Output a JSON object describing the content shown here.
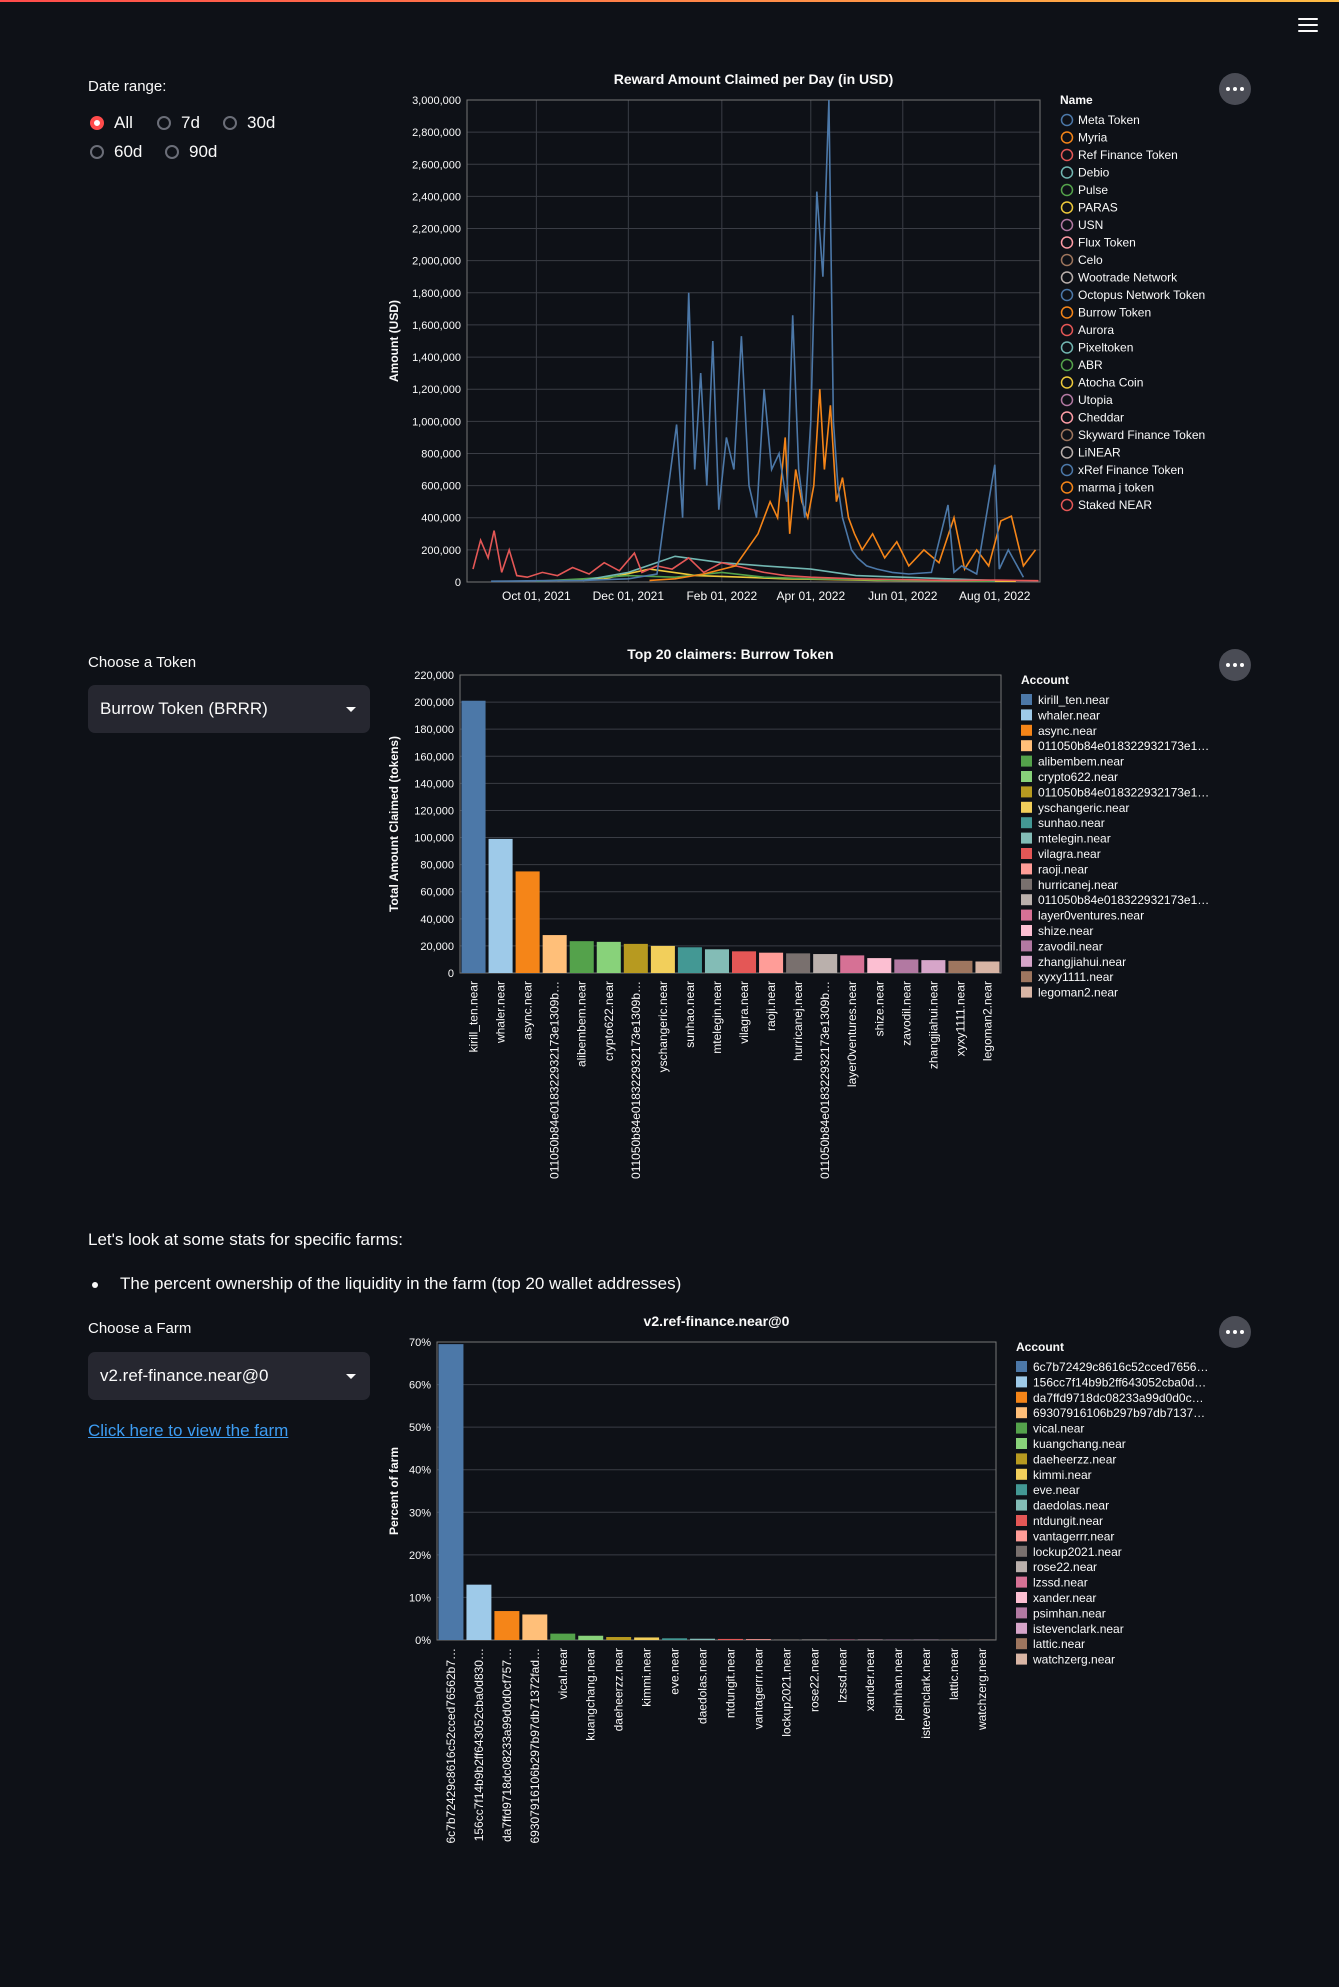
{
  "ui": {
    "date_range_label": "Date range:",
    "date_options": [
      "All",
      "7d",
      "30d",
      "60d",
      "90d"
    ],
    "date_selected": "All",
    "token_label": "Choose a Token",
    "token_value": "Burrow Token (BRRR)",
    "farm_intro": "Let's look at some stats for specific farms:",
    "farm_bullet": "The percent ownership of the liquidity in the farm (top 20 wallet addresses)",
    "farm_label": "Choose a Farm",
    "farm_value": "v2.ref-finance.near@0",
    "farm_link": "Click here to view the farm"
  },
  "chart_data": [
    {
      "type": "line",
      "title": "Reward Amount Claimed per Day (in USD)",
      "ylabel": "Amount (USD)",
      "ylim": [
        0,
        3000000
      ],
      "xlim": [
        "2021-08-16",
        "2022-08-31"
      ],
      "x_ticks": [
        "Oct 01, 2021",
        "Dec 01, 2021",
        "Feb 01, 2022",
        "Apr 01, 2022",
        "Jun 01, 2022",
        "Aug 01, 2022"
      ],
      "y_ticks": [
        "0",
        "200,000",
        "400,000",
        "600,000",
        "800,000",
        "1,000,000",
        "1,200,000",
        "1,400,000",
        "1,600,000",
        "1,800,000",
        "2,000,000",
        "2,200,000",
        "2,400,000",
        "2,600,000",
        "2,800,000",
        "3,000,000"
      ],
      "legend_title": "Name",
      "legend": "right",
      "grid": true,
      "legend_entries": [
        {
          "name": "Meta Token",
          "color": "#4c78a8"
        },
        {
          "name": "Myria",
          "color": "#f58518"
        },
        {
          "name": "Ref Finance Token",
          "color": "#e45756"
        },
        {
          "name": "Debio",
          "color": "#72b7b2"
        },
        {
          "name": "Pulse",
          "color": "#54a24b"
        },
        {
          "name": "PARAS",
          "color": "#eeca3b"
        },
        {
          "name": "USN",
          "color": "#b279a2"
        },
        {
          "name": "Flux Token",
          "color": "#ff9da6"
        },
        {
          "name": "Celo",
          "color": "#9d755d"
        },
        {
          "name": "Wootrade Network",
          "color": "#bab0ac"
        },
        {
          "name": "Octopus Network Token",
          "color": "#4c78a8"
        },
        {
          "name": "Burrow Token",
          "color": "#f58518"
        },
        {
          "name": "Aurora",
          "color": "#e45756"
        },
        {
          "name": "Pixeltoken",
          "color": "#72b7b2"
        },
        {
          "name": "ABR",
          "color": "#54a24b"
        },
        {
          "name": "Atocha Coin",
          "color": "#eeca3b"
        },
        {
          "name": "Utopia",
          "color": "#b279a2"
        },
        {
          "name": "Cheddar",
          "color": "#ff9da6"
        },
        {
          "name": "Skyward Finance Token",
          "color": "#9d755d"
        },
        {
          "name": "LiNEAR",
          "color": "#bab0ac"
        },
        {
          "name": "xRef Finance Token",
          "color": "#4c78a8"
        },
        {
          "name": "marma j token",
          "color": "#f58518"
        },
        {
          "name": "Staked NEAR",
          "color": "#e45756"
        }
      ],
      "series": [
        {
          "name": "Meta Token",
          "color": "#4c78a8",
          "x": [
            "2021-09-01",
            "2021-10-01",
            "2021-11-01",
            "2021-12-01",
            "2021-12-20",
            "2022-01-02",
            "2022-01-06",
            "2022-01-10",
            "2022-01-14",
            "2022-01-18",
            "2022-01-22",
            "2022-01-26",
            "2022-01-30",
            "2022-02-04",
            "2022-02-09",
            "2022-02-14",
            "2022-02-19",
            "2022-02-24",
            "2022-03-01",
            "2022-03-06",
            "2022-03-11",
            "2022-03-16",
            "2022-03-20",
            "2022-03-24",
            "2022-03-28",
            "2022-04-01",
            "2022-04-05",
            "2022-04-09",
            "2022-04-13",
            "2022-04-16",
            "2022-04-19",
            "2022-04-22",
            "2022-04-25",
            "2022-04-28",
            "2022-05-02",
            "2022-05-08",
            "2022-05-15",
            "2022-05-25",
            "2022-06-05",
            "2022-06-20",
            "2022-07-01",
            "2022-07-05",
            "2022-07-10",
            "2022-07-20",
            "2022-08-01",
            "2022-08-04",
            "2022-08-10",
            "2022-08-20"
          ],
          "y": [
            5000,
            8000,
            10000,
            20000,
            50000,
            980000,
            400000,
            1800000,
            700000,
            1300000,
            600000,
            1500000,
            450000,
            900000,
            700000,
            1530000,
            600000,
            400000,
            1200000,
            700000,
            800000,
            500000,
            1660000,
            700000,
            400000,
            1000000,
            2430000,
            1900000,
            3000000,
            1000000,
            600000,
            400000,
            300000,
            200000,
            150000,
            100000,
            80000,
            60000,
            50000,
            60000,
            480000,
            60000,
            100000,
            50000,
            730000,
            80000,
            200000,
            30000
          ]
        },
        {
          "name": "Burrow Token",
          "color": "#f58518",
          "x": [
            "2021-12-15",
            "2022-01-01",
            "2022-01-20",
            "2022-02-10",
            "2022-02-25",
            "2022-03-05",
            "2022-03-10",
            "2022-03-15",
            "2022-03-18",
            "2022-03-22",
            "2022-03-26",
            "2022-03-30",
            "2022-04-03",
            "2022-04-07",
            "2022-04-10",
            "2022-04-14",
            "2022-04-18",
            "2022-04-22",
            "2022-04-26",
            "2022-04-30",
            "2022-05-05",
            "2022-05-12",
            "2022-05-20",
            "2022-05-28",
            "2022-06-05",
            "2022-06-15",
            "2022-06-25",
            "2022-07-05",
            "2022-07-12",
            "2022-07-20",
            "2022-07-28",
            "2022-08-05",
            "2022-08-12",
            "2022-08-20",
            "2022-08-28"
          ],
          "y": [
            10000,
            20000,
            50000,
            100000,
            300000,
            500000,
            400000,
            900000,
            300000,
            700000,
            500000,
            400000,
            600000,
            1200000,
            700000,
            1100000,
            500000,
            650000,
            400000,
            300000,
            200000,
            300000,
            150000,
            250000,
            100000,
            200000,
            120000,
            400000,
            80000,
            200000,
            100000,
            380000,
            410000,
            100000,
            200000
          ]
        },
        {
          "name": "Ref Finance Token",
          "color": "#e45756",
          "x": [
            "2021-08-20",
            "2021-08-25",
            "2021-08-30",
            "2021-09-03",
            "2021-09-08",
            "2021-09-13",
            "2021-09-18",
            "2021-09-25",
            "2021-10-05",
            "2021-10-15",
            "2021-10-25",
            "2021-11-05",
            "2021-11-15",
            "2021-11-25",
            "2021-12-05",
            "2021-12-10",
            "2021-12-20",
            "2021-12-30",
            "2022-01-10",
            "2022-01-20",
            "2022-02-01",
            "2022-02-15",
            "2022-03-01",
            "2022-03-15",
            "2022-04-01",
            "2022-05-01",
            "2022-06-01",
            "2022-07-01",
            "2022-08-01",
            "2022-08-30"
          ],
          "y": [
            80000,
            260000,
            150000,
            320000,
            60000,
            200000,
            40000,
            30000,
            60000,
            40000,
            90000,
            50000,
            120000,
            70000,
            180000,
            60000,
            100000,
            80000,
            150000,
            60000,
            120000,
            90000,
            60000,
            40000,
            30000,
            20000,
            15000,
            10000,
            12000,
            8000
          ]
        },
        {
          "name": "Debio",
          "color": "#72b7b2",
          "x": [
            "2021-11-01",
            "2021-12-01",
            "2022-01-01",
            "2022-02-01",
            "2022-03-01",
            "2022-04-01",
            "2022-05-01",
            "2022-06-01",
            "2022-07-01",
            "2022-08-01"
          ],
          "y": [
            10000,
            60000,
            160000,
            120000,
            100000,
            80000,
            40000,
            30000,
            20000,
            10000
          ]
        },
        {
          "name": "Pulse",
          "color": "#54a24b",
          "x": [
            "2021-10-01",
            "2021-11-01",
            "2021-12-01",
            "2022-01-01",
            "2022-02-01",
            "2022-03-01",
            "2022-04-01",
            "2022-05-01",
            "2022-06-01",
            "2022-07-01",
            "2022-08-01"
          ],
          "y": [
            5000,
            20000,
            40000,
            30000,
            60000,
            30000,
            20000,
            15000,
            10000,
            8000,
            5000
          ]
        },
        {
          "name": "PARAS",
          "color": "#eeca3b",
          "x": [
            "2021-10-15",
            "2021-11-15",
            "2021-12-15",
            "2022-01-15",
            "2022-02-15",
            "2022-03-15",
            "2022-04-15",
            "2022-05-15",
            "2022-06-15",
            "2022-07-15",
            "2022-08-15"
          ],
          "y": [
            10000,
            20000,
            80000,
            40000,
            30000,
            20000,
            15000,
            10000,
            8000,
            6000,
            5000
          ]
        }
      ]
    },
    {
      "type": "bar",
      "title": "Top 20 claimers: Burrow Token",
      "ylabel": "Total Amount Claimed (tokens)",
      "ylim": [
        0,
        220000
      ],
      "y_ticks": [
        "0",
        "20,000",
        "40,000",
        "60,000",
        "80,000",
        "100,000",
        "120,000",
        "140,000",
        "160,000",
        "180,000",
        "200,000",
        "220,000"
      ],
      "legend_title": "Account",
      "legend": "right",
      "grid": true,
      "categories": [
        "kirill_ten.near",
        "whaler.near",
        "async.near",
        "011050b84e01832293217 3e1309b...",
        "alibembem.near",
        "crypto622.near",
        "011050b84e01832293217 3e1309b...",
        "yschangeric.near",
        "sunhao.near",
        "mtelegin.near",
        "vilagra.near",
        "raoji.near",
        "hurricanej.near",
        "011050b84e01832293217 3e1309b...",
        "layer0ventures.near",
        "shize.near",
        "zavodil.near",
        "zhangjiahui.near",
        "xyxy1111.near",
        "legoman2.near"
      ],
      "x_tick_labels": [
        "kirill_ten.near",
        "whaler.near",
        "async.near",
        "011050b84e018322932173e1309b…",
        "alibembem.near",
        "crypto622.near",
        "011050b84e018322932173e1309b…",
        "yschangeric.near",
        "sunhao.near",
        "mtelegin.near",
        "vilagra.near",
        "raoji.near",
        "hurricanej.near",
        "011050b84e018322932173e1309b…",
        "layer0ventures.near",
        "shize.near",
        "zavodil.near",
        "zhangjiahui.near",
        "xyxy1111.near",
        "legoman2.near"
      ],
      "legend_labels": [
        "kirill_ten.near",
        "whaler.near",
        "async.near",
        "011050b84e018322932173e1…",
        "alibembem.near",
        "crypto622.near",
        "011050b84e018322932173e1…",
        "yschangeric.near",
        "sunhao.near",
        "mtelegin.near",
        "vilagra.near",
        "raoji.near",
        "hurricanej.near",
        "011050b84e018322932173e1…",
        "layer0ventures.near",
        "shize.near",
        "zavodil.near",
        "zhangjiahui.near",
        "xyxy1111.near",
        "legoman2.near"
      ],
      "values": [
        201000,
        99000,
        75000,
        28000,
        23500,
        23000,
        21500,
        20000,
        19000,
        17500,
        16000,
        15000,
        14500,
        14000,
        13000,
        11000,
        10000,
        9500,
        9000,
        8500
      ],
      "colors": [
        "#4c78a8",
        "#9ecae9",
        "#f58518",
        "#ffbf79",
        "#54a24b",
        "#88d27a",
        "#b79a20",
        "#f2cf5b",
        "#439894",
        "#83bcb6",
        "#e45756",
        "#ff9d98",
        "#79706e",
        "#bab0ac",
        "#d67195",
        "#fcbfd2",
        "#b279a2",
        "#d6a5c9",
        "#9e765f",
        "#d8b5a5"
      ]
    },
    {
      "type": "bar",
      "title": "v2.ref-finance.near@0",
      "ylabel": "Percent of farm",
      "ylim": [
        0,
        70
      ],
      "y_ticks": [
        "0%",
        "10%",
        "20%",
        "30%",
        "40%",
        "50%",
        "60%",
        "70%"
      ],
      "legend_title": "Account",
      "legend": "right",
      "grid": true,
      "x_tick_labels": [
        "6c7b72429c8616c52cced76562b7…",
        "156cc7f14b9b2ff643052cba0d830…",
        "da7ffd9718dc08233a99d0d0cf757…",
        "69307916106b297b97db71372fad…",
        "vical.near",
        "kuangchang.near",
        "daeheerzz.near",
        "kimmi.near",
        "eve.near",
        "daedolas.near",
        "ntdungit.near",
        "vantagerrr.near",
        "lockup2021.near",
        "rose22.near",
        "lzssd.near",
        "xander.near",
        "psimhan.near",
        "istevenclark.near",
        "lattic.near",
        "watchzerg.near"
      ],
      "legend_labels": [
        "6c7b72429c8616c52cced7656…",
        "156cc7f14b9b2ff643052cba0d…",
        "da7ffd9718dc08233a99d0d0c…",
        "69307916106b297b97db7137…",
        "vical.near",
        "kuangchang.near",
        "daeheerzz.near",
        "kimmi.near",
        "eve.near",
        "daedolas.near",
        "ntdungit.near",
        "vantagerrr.near",
        "lockup2021.near",
        "rose22.near",
        "lzssd.near",
        "xander.near",
        "psimhan.near",
        "istevenclark.near",
        "lattic.near",
        "watchzerg.near"
      ],
      "values": [
        69.5,
        13,
        6.8,
        6,
        1.5,
        1,
        0.7,
        0.6,
        0.4,
        0.3,
        0.25,
        0.2,
        0.15,
        0.12,
        0.1,
        0.08,
        0.07,
        0.06,
        0.05,
        0.04
      ],
      "colors": [
        "#4c78a8",
        "#9ecae9",
        "#f58518",
        "#ffbf79",
        "#54a24b",
        "#88d27a",
        "#b79a20",
        "#f2cf5b",
        "#439894",
        "#83bcb6",
        "#e45756",
        "#ff9d98",
        "#79706e",
        "#bab0ac",
        "#d67195",
        "#fcbfd2",
        "#b279a2",
        "#d6a5c9",
        "#9e765f",
        "#d8b5a5"
      ]
    }
  ]
}
